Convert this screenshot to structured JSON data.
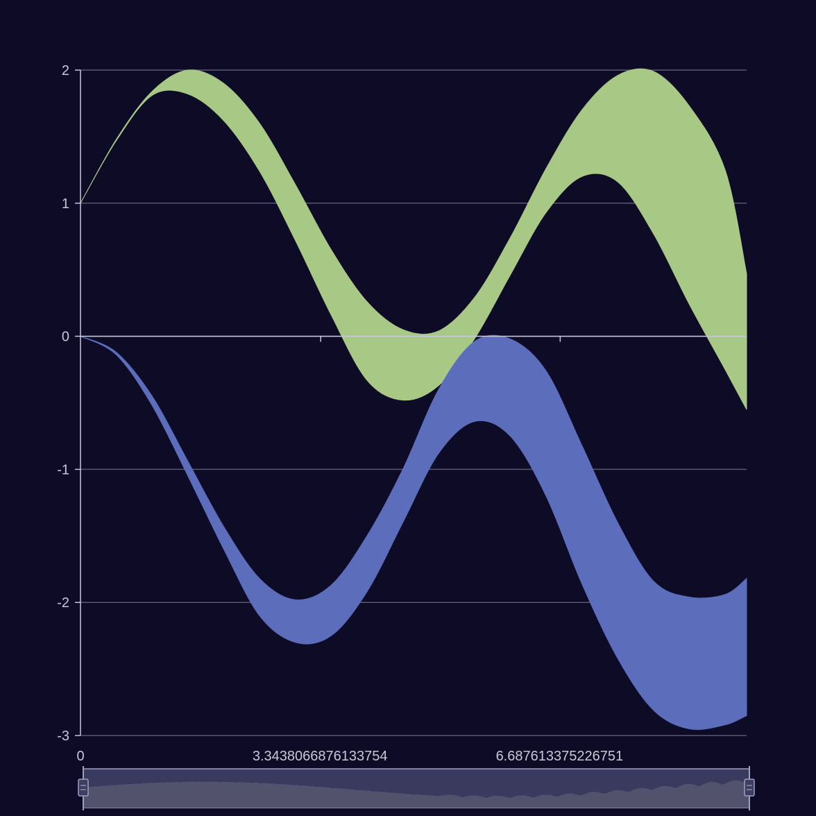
{
  "chart_data": {
    "type": "area",
    "title": "",
    "xlabel": "",
    "ylabel": "",
    "xlim": [
      0,
      9.3
    ],
    "ylim": [
      -3,
      2
    ],
    "x_ticks": [
      "0",
      "3.3438066876133754",
      "6.687613375226751"
    ],
    "x_tick_values": [
      0,
      3.3438066876133754,
      6.687613375226751
    ],
    "y_ticks": [
      "2",
      "1",
      "0",
      "-1",
      "-2",
      "-3"
    ],
    "y_tick_values": [
      2,
      1,
      0,
      -1,
      -2,
      -3
    ],
    "grid": "horizontal",
    "legend": "none",
    "series": [
      {
        "color": "#a8c986",
        "x": [
          0,
          0.5,
          1.0,
          1.5,
          2.0,
          2.5,
          3.0,
          3.5,
          4.0,
          4.5,
          5.0,
          5.5,
          6.0,
          6.5,
          7.0,
          7.5,
          8.0,
          8.5,
          9.0,
          9.3
        ],
        "upper": [
          1.0,
          1.48,
          1.84,
          2.0,
          1.9,
          1.6,
          1.14,
          0.65,
          0.26,
          0.05,
          0.04,
          0.29,
          0.74,
          1.26,
          1.7,
          1.96,
          1.99,
          1.73,
          1.25,
          0.47
        ],
        "lower": [
          1.0,
          1.47,
          1.81,
          1.82,
          1.62,
          1.24,
          0.72,
          0.16,
          -0.33,
          -0.48,
          -0.37,
          -0.02,
          0.46,
          0.93,
          1.2,
          1.16,
          0.77,
          0.24,
          -0.25,
          -0.55
        ]
      },
      {
        "color": "#5b6dbb",
        "x": [
          0,
          0.5,
          1.0,
          1.5,
          2.0,
          2.5,
          3.0,
          3.5,
          4.0,
          4.5,
          5.0,
          5.5,
          6.0,
          6.5,
          7.0,
          7.5,
          8.0,
          8.5,
          9.0,
          9.3
        ],
        "upper": [
          0.0,
          -0.12,
          -0.45,
          -0.94,
          -1.43,
          -1.82,
          -1.98,
          -1.87,
          -1.5,
          -1.0,
          -0.4,
          -0.04,
          -0.02,
          -0.26,
          -0.82,
          -1.4,
          -1.84,
          -1.96,
          -1.94,
          -1.82
        ],
        "lower": [
          0.0,
          -0.14,
          -0.52,
          -1.05,
          -1.6,
          -2.1,
          -2.3,
          -2.25,
          -1.92,
          -1.4,
          -0.88,
          -0.64,
          -0.75,
          -1.2,
          -1.86,
          -2.42,
          -2.81,
          -2.95,
          -2.92,
          -2.85
        ]
      }
    ]
  },
  "zoom_bar": {
    "fill": "#3a3a5e",
    "border": "#9fa0c0"
  }
}
